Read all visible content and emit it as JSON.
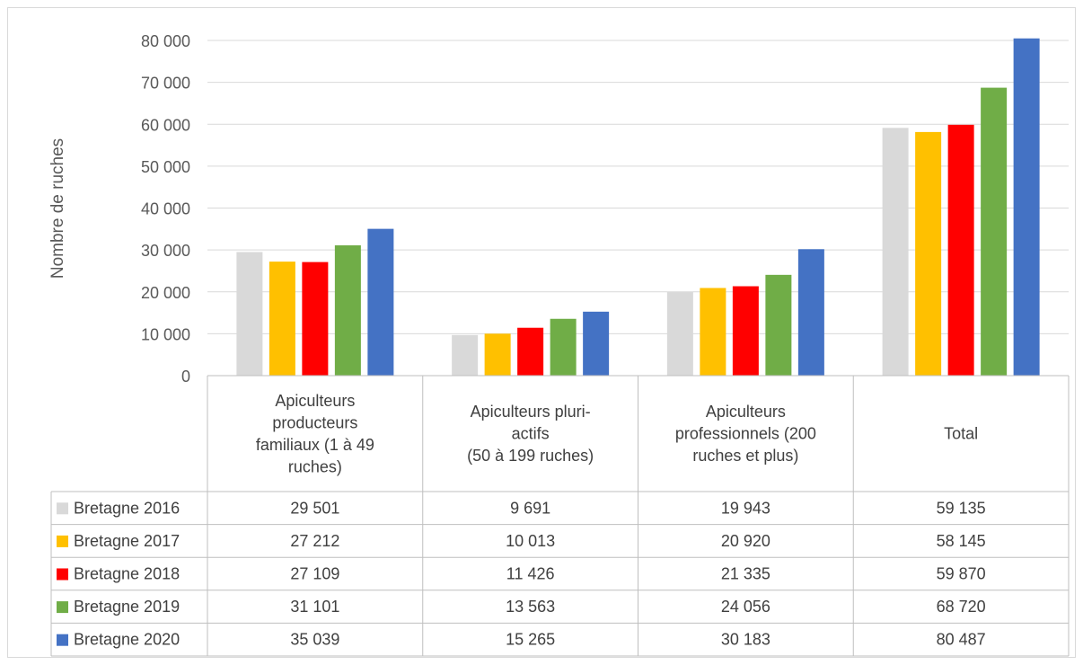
{
  "chart_data": {
    "type": "bar",
    "ylabel": "Nombre de ruches",
    "ylim": [
      0,
      80000
    ],
    "ytick_step": 10000,
    "ytick_labels": [
      "0",
      "10 000",
      "20 000",
      "30 000",
      "40 000",
      "50 000",
      "60 000",
      "70 000",
      "80 000"
    ],
    "grid": true,
    "legend": "data-table",
    "categories": [
      [
        "Apiculteurs",
        "producteurs",
        "familiaux (1 à 49",
        "ruches)"
      ],
      [
        "Apiculteurs pluri-",
        "actifs",
        "(50 à 199 ruches)"
      ],
      [
        "Apiculteurs",
        "professionnels (200",
        "ruches et plus)"
      ],
      [
        "Total"
      ]
    ],
    "series": [
      {
        "name": "Bretagne 2016",
        "color": "#d9d9d9",
        "values": [
          29501,
          9691,
          19943,
          59135
        ],
        "labels": [
          "29 501",
          "9 691",
          "19 943",
          "59 135"
        ]
      },
      {
        "name": "Bretagne 2017",
        "color": "#ffc000",
        "values": [
          27212,
          10013,
          20920,
          58145
        ],
        "labels": [
          "27 212",
          "10 013",
          "20 920",
          "58 145"
        ]
      },
      {
        "name": "Bretagne 2018",
        "color": "#ff0000",
        "values": [
          27109,
          11426,
          21335,
          59870
        ],
        "labels": [
          "27 109",
          "11 426",
          "21 335",
          "59 870"
        ]
      },
      {
        "name": "Bretagne 2019",
        "color": "#70ad47",
        "values": [
          31101,
          13563,
          24056,
          68720
        ],
        "labels": [
          "31 101",
          "13 563",
          "24 056",
          "68 720"
        ]
      },
      {
        "name": "Bretagne 2020",
        "color": "#4472c4",
        "values": [
          35039,
          15265,
          30183,
          80487
        ],
        "labels": [
          "35 039",
          "15 265",
          "30 183",
          "80 487"
        ]
      }
    ]
  }
}
